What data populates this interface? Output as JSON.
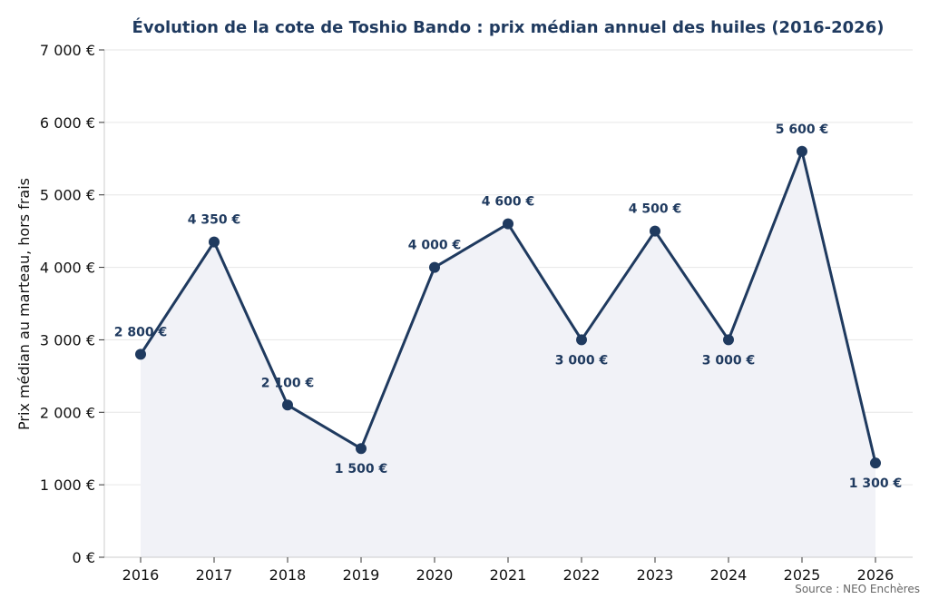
{
  "chart_data": {
    "type": "line",
    "title": "Évolution de la cote de Toshio Bando : prix médian annuel des huiles (2016-2026)",
    "xlabel": "",
    "ylabel": "Prix médian au marteau, hors frais",
    "x": [
      "2016",
      "2017",
      "2018",
      "2019",
      "2020",
      "2021",
      "2022",
      "2023",
      "2024",
      "2025",
      "2026"
    ],
    "series": [
      {
        "values": [
          2800,
          4350,
          2100,
          1500,
          4000,
          4600,
          3000,
          4500,
          3000,
          5600,
          1300
        ]
      }
    ],
    "data_labels": [
      "2 800 €",
      "4 350 €",
      "2 100 €",
      "1 500 €",
      "4 000 €",
      "4 600 €",
      "3 000 €",
      "4 500 €",
      "3 000 €",
      "5 600 €",
      "1 300 €"
    ],
    "label_positions": [
      "above",
      "above",
      "above",
      "below",
      "above",
      "above",
      "below",
      "above",
      "below",
      "above",
      "below"
    ],
    "ylim": [
      0,
      7000
    ],
    "yticks": [
      0,
      1000,
      2000,
      3000,
      4000,
      5000,
      6000,
      7000
    ],
    "ytick_labels": [
      "0 €",
      "1 000 €",
      "2 000 €",
      "3 000 €",
      "4 000 €",
      "5 000 €",
      "6 000 €",
      "7 000 €"
    ],
    "grid": true,
    "area_fill": true,
    "colors": {
      "line": "#1f3a5f",
      "fill": "#f1f2f7",
      "grid": "#e6e6e6",
      "title": "#1f3a5f"
    }
  },
  "source": "Source : NEO Enchères"
}
